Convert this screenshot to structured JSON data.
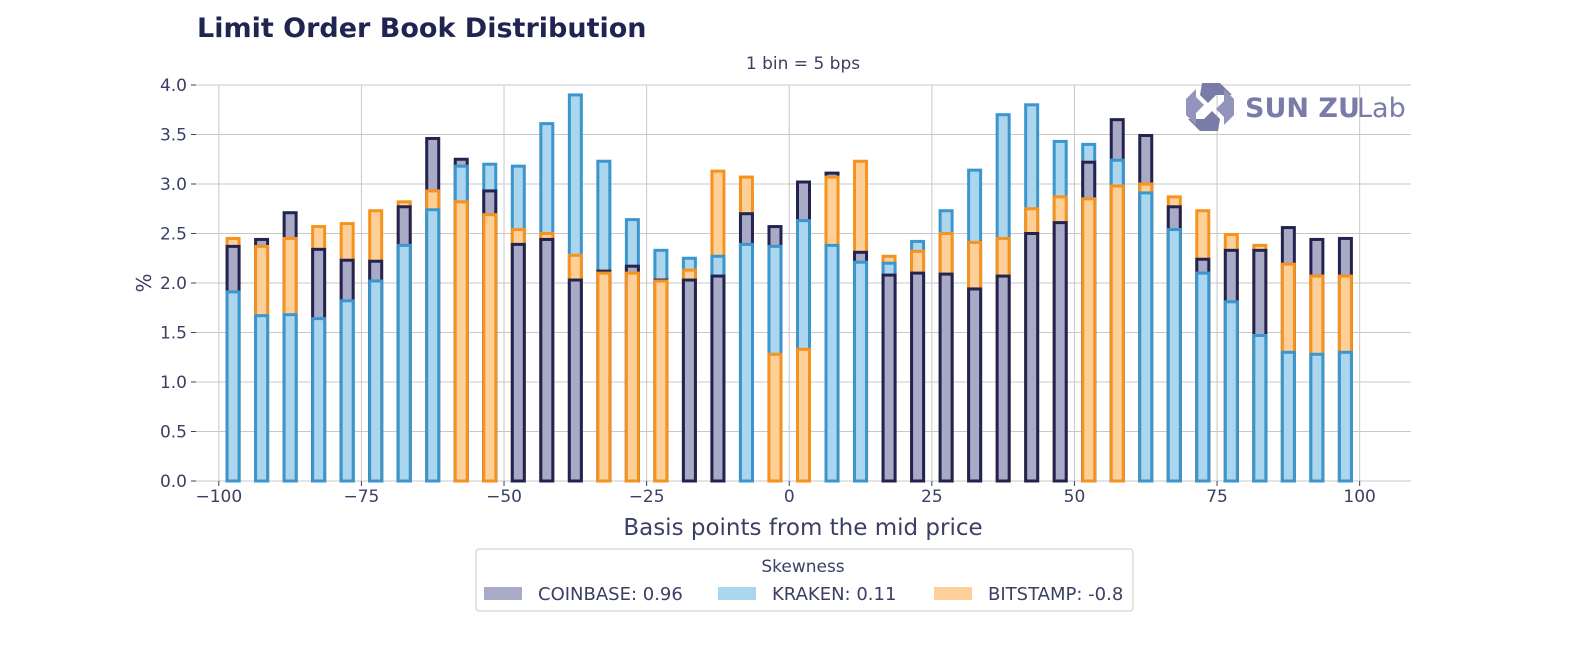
{
  "chart_data": {
    "type": "bar",
    "title": "Limit Order Book Distribution",
    "subtitle": "1 bin = 5 bps",
    "xlabel": "Basis points from the mid price",
    "ylabel": "%",
    "xlim": [
      -104,
      109
    ],
    "ylim": [
      0,
      4.0
    ],
    "xticks": [
      -100,
      -75,
      -50,
      -25,
      0,
      25,
      50,
      75,
      100
    ],
    "xtick_labels": [
      "−100",
      "−75",
      "−50",
      "−25",
      "0",
      "25",
      "50",
      "75",
      "100"
    ],
    "yticks": [
      0,
      0.5,
      1.0,
      1.5,
      2.0,
      2.5,
      3.0,
      3.5,
      4.0
    ],
    "ytick_labels": [
      "0.0",
      "0.5",
      "1.0",
      "1.5",
      "2.0",
      "2.5",
      "3.0",
      "3.5",
      "4.0"
    ],
    "grid": true,
    "categories": [
      -97.5,
      -92.5,
      -87.5,
      -82.5,
      -77.5,
      -72.5,
      -67.5,
      -62.5,
      -57.5,
      -52.5,
      -47.5,
      -42.5,
      -37.5,
      -32.5,
      -27.5,
      -22.5,
      -17.5,
      -12.5,
      -7.5,
      -2.5,
      2.5,
      7.5,
      12.5,
      17.5,
      22.5,
      27.5,
      32.5,
      37.5,
      42.5,
      47.5,
      52.5,
      57.5,
      62.5,
      67.5,
      72.5,
      77.5,
      82.5,
      87.5,
      92.5,
      97.5
    ],
    "series": [
      {
        "name": "COINBASE",
        "key": "coinbase",
        "values": [
          2.37,
          2.44,
          2.71,
          2.34,
          2.23,
          2.22,
          2.77,
          3.46,
          3.25,
          2.93,
          2.39,
          2.44,
          2.03,
          2.12,
          2.17,
          2.03,
          2.03,
          2.07,
          2.7,
          2.57,
          3.02,
          3.11,
          2.31,
          2.08,
          2.1,
          2.09,
          1.94,
          2.07,
          2.5,
          2.61,
          3.22,
          3.65,
          3.49,
          2.77,
          2.24,
          2.33,
          2.33,
          2.56,
          2.44,
          2.45
        ]
      },
      {
        "name": "KRAKEN",
        "key": "kraken",
        "values": [
          1.91,
          1.67,
          1.68,
          1.64,
          1.82,
          2.02,
          2.38,
          2.74,
          3.18,
          3.2,
          3.18,
          3.61,
          3.9,
          3.23,
          2.64,
          2.33,
          2.25,
          2.27,
          2.39,
          2.37,
          2.63,
          2.38,
          2.21,
          2.2,
          2.42,
          2.73,
          3.14,
          3.7,
          3.8,
          3.43,
          3.4,
          3.24,
          2.91,
          2.54,
          2.1,
          1.81,
          1.47,
          1.3,
          1.28,
          1.3
        ]
      },
      {
        "name": "BITSTAMP",
        "key": "bitstamp",
        "values": [
          2.45,
          2.37,
          2.45,
          2.57,
          2.6,
          2.73,
          2.82,
          2.93,
          2.82,
          2.69,
          2.54,
          2.5,
          2.28,
          2.1,
          2.1,
          2.02,
          2.13,
          3.13,
          3.07,
          1.28,
          1.33,
          3.07,
          3.23,
          2.27,
          2.32,
          2.5,
          2.41,
          2.45,
          2.75,
          2.87,
          2.85,
          2.98,
          3.0,
          2.87,
          2.73,
          2.49,
          2.38,
          2.19,
          2.07,
          2.07
        ]
      }
    ],
    "colors": {
      "coinbase": {
        "fill": "#a9aac5",
        "edge": "#23234f"
      },
      "kraken": {
        "fill": "#acd6ee",
        "edge": "#3b96cd"
      },
      "bitstamp": {
        "fill": "#fdd09a",
        "edge": "#f6921e"
      }
    },
    "legend": {
      "title": "Skewness",
      "position": "bottom-center",
      "entries": [
        {
          "key": "coinbase",
          "label": "COINBASE: 0.96"
        },
        {
          "key": "kraken",
          "label": "KRAKEN: 0.11"
        },
        {
          "key": "bitstamp",
          "label": "BITSTAMP: -0.8"
        }
      ]
    }
  },
  "watermark": {
    "brand_bold": "SUN ZU",
    "brand_light": "Lab",
    "icon": "sun-zu-logo-icon",
    "color": "#7a7ca8"
  }
}
